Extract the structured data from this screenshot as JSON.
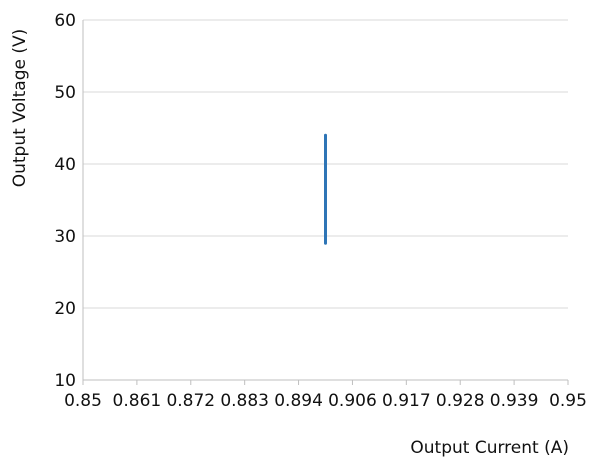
{
  "chart_data": {
    "type": "line",
    "title": "",
    "xlabel": "Output Current (A)",
    "ylabel": "Output Voltage (V)",
    "xlim": [
      0.85,
      0.95
    ],
    "ylim": [
      10,
      60
    ],
    "x_ticks": [
      "0.85",
      "0.861",
      "0.872",
      "0.883",
      "0.894",
      "0.906",
      "0.917",
      "0.928",
      "0.939",
      "0.95"
    ],
    "y_ticks": [
      "10",
      "20",
      "30",
      "40",
      "50",
      "60"
    ],
    "grid": true,
    "legend": "none",
    "series": [
      {
        "color": "#2e75b6",
        "points": [
          {
            "x": 0.9,
            "y": 29
          },
          {
            "x": 0.9,
            "y": 44
          }
        ]
      }
    ]
  }
}
